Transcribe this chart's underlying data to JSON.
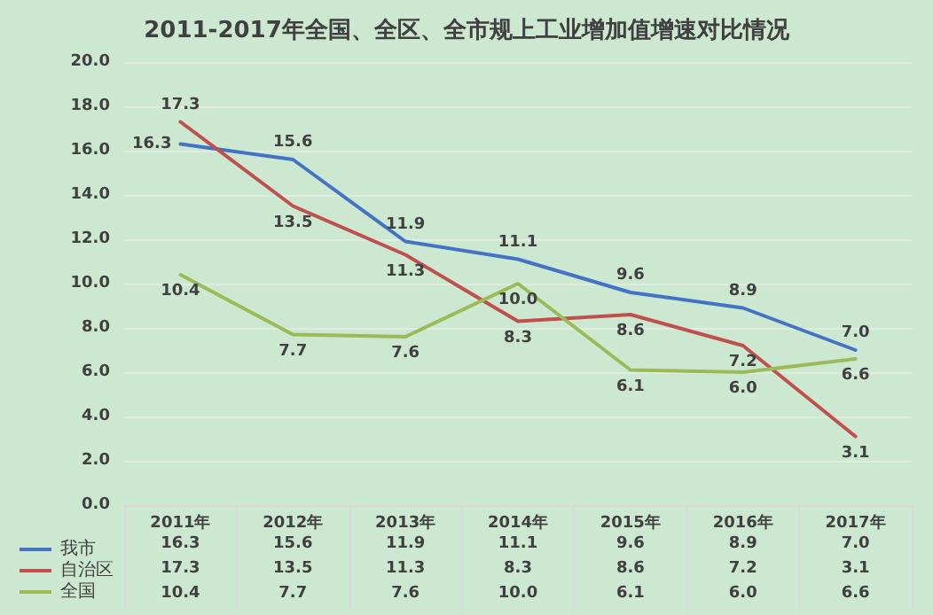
{
  "chart_data": {
    "type": "line",
    "title": "2011-2017年全国、全区、全市规上工业增加值增速对比情况",
    "categories": [
      "2011年",
      "2012年",
      "2013年",
      "2014年",
      "2015年",
      "2016年",
      "2017年"
    ],
    "series": [
      {
        "name": "我市",
        "color": "#4472c4",
        "values": [
          16.3,
          15.6,
          11.9,
          11.1,
          9.6,
          8.9,
          7.0
        ],
        "value_labels": [
          "16.3",
          "15.6",
          "11.9",
          "11.1",
          "9.6",
          "8.9",
          "7.0"
        ]
      },
      {
        "name": "自治区",
        "color": "#c0504d",
        "values": [
          17.3,
          13.5,
          11.3,
          8.3,
          8.6,
          7.2,
          3.1
        ],
        "value_labels": [
          "17.3",
          "13.5",
          "11.3",
          "8.3",
          "8.6",
          "7.2",
          "3.1"
        ]
      },
      {
        "name": "全国",
        "color": "#9bbb59",
        "values": [
          10.4,
          7.7,
          7.6,
          10.0,
          6.1,
          6.0,
          6.6
        ],
        "value_labels": [
          "10.4",
          "7.7",
          "7.6",
          "10.0",
          "6.1",
          "6.0",
          "6.6"
        ]
      }
    ],
    "ylim": [
      0,
      20
    ],
    "yticks": [
      {
        "value": 0,
        "label": "0.0"
      },
      {
        "value": 2,
        "label": "2.0"
      },
      {
        "value": 4,
        "label": "4.0"
      },
      {
        "value": 6,
        "label": "6.0"
      },
      {
        "value": 8,
        "label": "8.0"
      },
      {
        "value": 10,
        "label": "10.0"
      },
      {
        "value": 12,
        "label": "12.0"
      },
      {
        "value": 14,
        "label": "14.0"
      },
      {
        "value": 16,
        "label": "16.0"
      },
      {
        "value": 18,
        "label": "18.0"
      },
      {
        "value": 20,
        "label": "20.0"
      }
    ],
    "grid": "y",
    "legend": "bottom left",
    "marker": "none",
    "line_style": "solid"
  }
}
